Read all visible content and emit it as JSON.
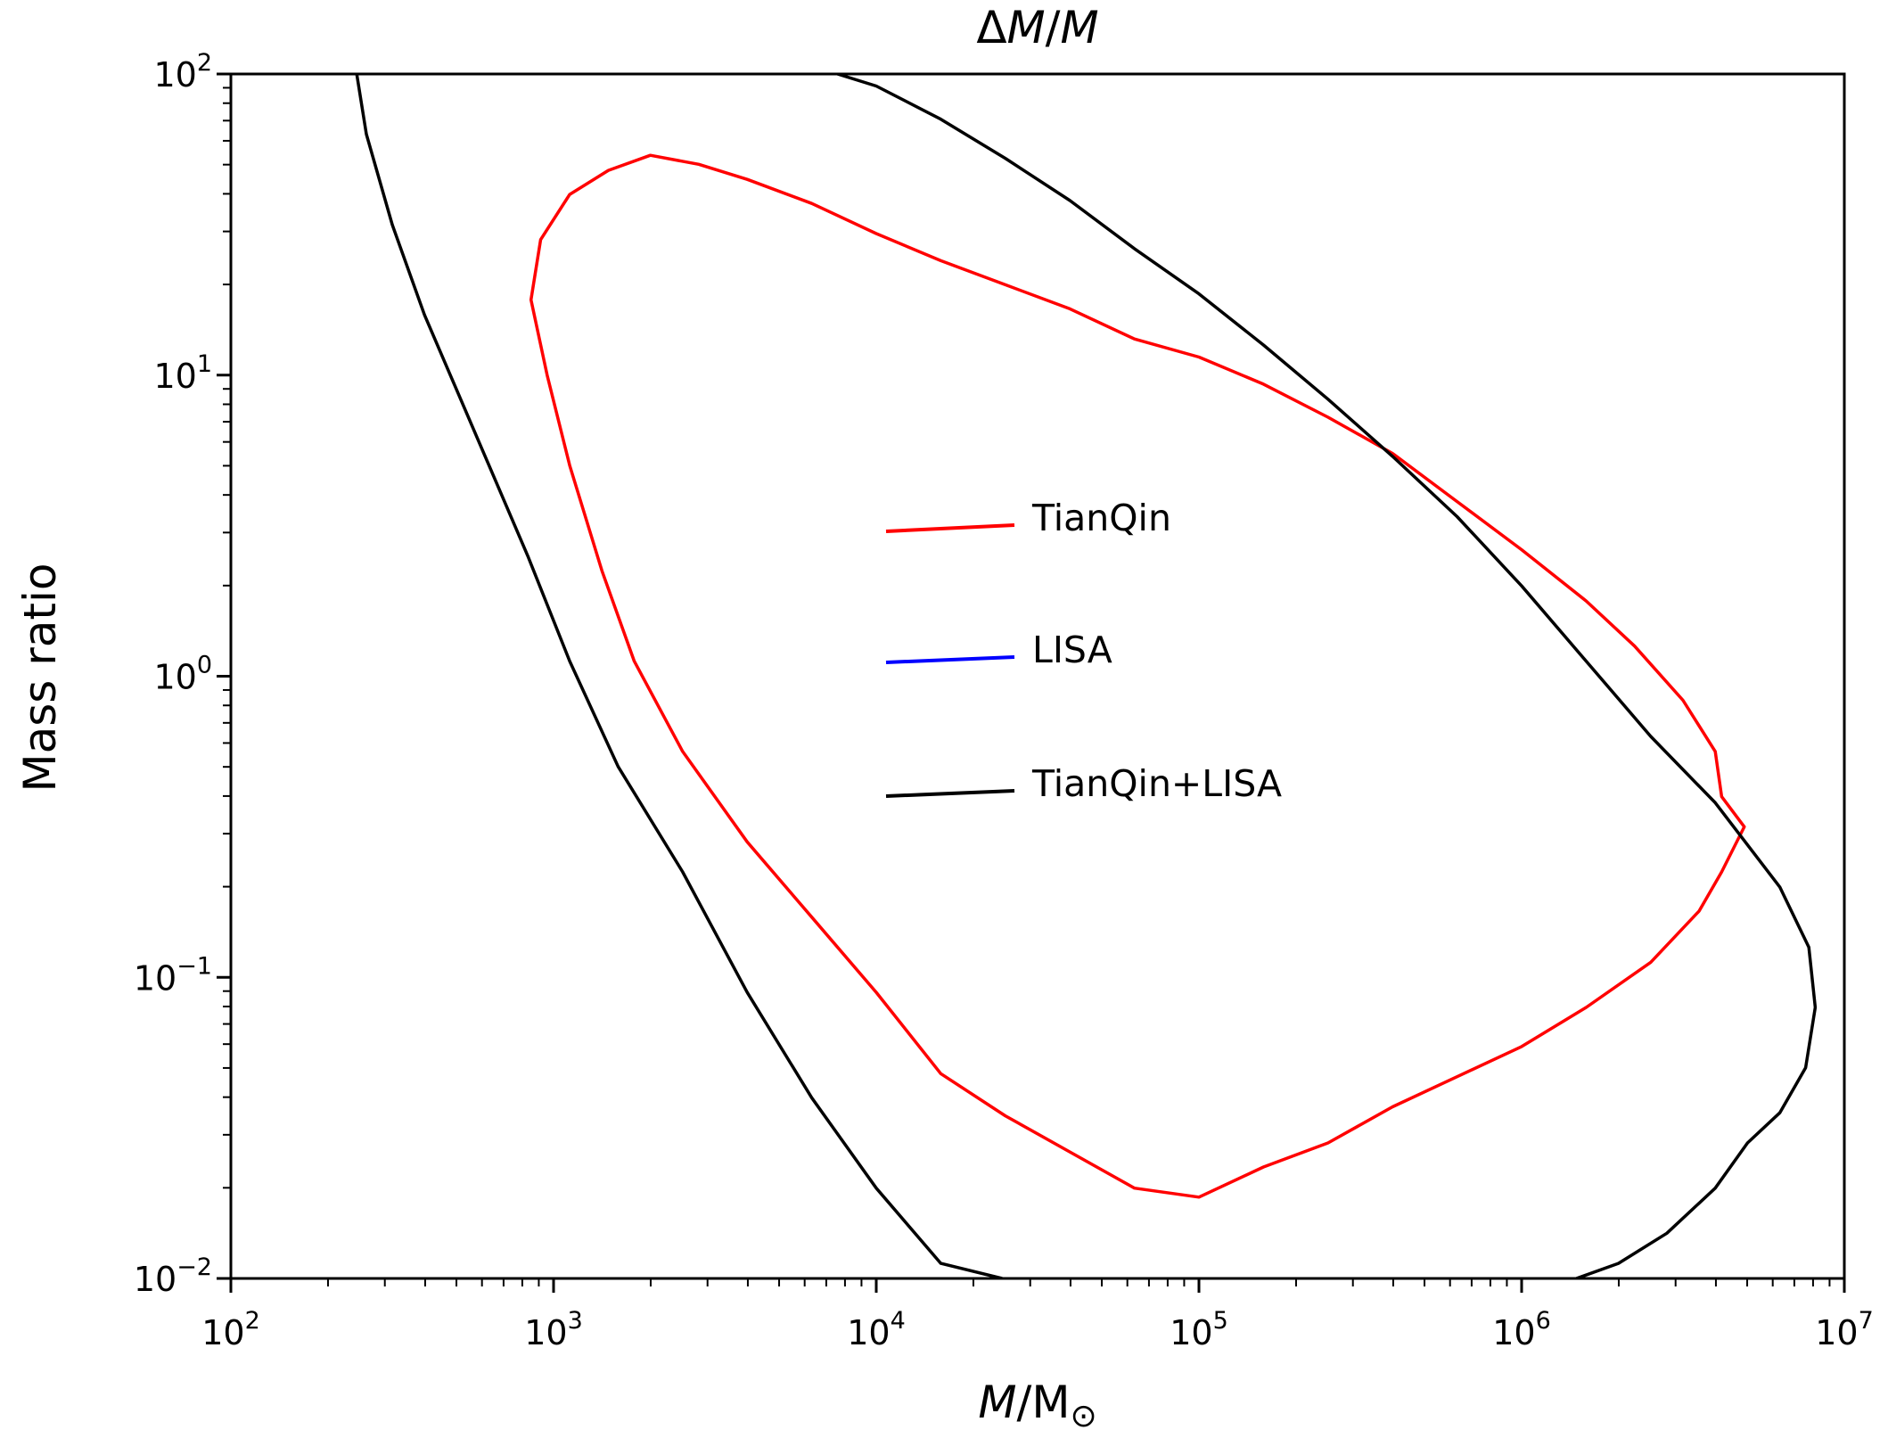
{
  "chart_data": {
    "type": "line",
    "title": {
      "prefix": "Δ",
      "var1": "M",
      "sep": "/",
      "var2": "M"
    },
    "xlabel": {
      "var": "M",
      "sep": "/M",
      "sub": "⊙"
    },
    "ylabel": "Mass ratio",
    "x_scale": "log",
    "y_scale": "log",
    "xlim": [
      100,
      10000000
    ],
    "ylim": [
      0.01,
      100
    ],
    "x_ticks": [
      {
        "base": "10",
        "exp": "2",
        "value": 100
      },
      {
        "base": "10",
        "exp": "3",
        "value": 1000
      },
      {
        "base": "10",
        "exp": "4",
        "value": 10000
      },
      {
        "base": "10",
        "exp": "5",
        "value": 100000
      },
      {
        "base": "10",
        "exp": "6",
        "value": 1000000
      },
      {
        "base": "10",
        "exp": "7",
        "value": 10000000
      }
    ],
    "y_ticks": [
      {
        "base": "10",
        "exp": "2",
        "value": 100
      },
      {
        "base": "10",
        "exp": "1",
        "value": 10
      },
      {
        "base": "10",
        "exp": "0",
        "value": 1
      },
      {
        "base": "10",
        "exp": "−1",
        "value": 0.1
      },
      {
        "base": "10",
        "exp": "−2",
        "value": 0.01
      }
    ],
    "legend_position": "center",
    "series": [
      {
        "name": "TianQin",
        "color": "#ff0000",
        "closed": true,
        "log10_points": [
          [
            2.93,
            1.25
          ],
          [
            2.96,
            1.45
          ],
          [
            3.05,
            1.6
          ],
          [
            3.17,
            1.68
          ],
          [
            3.3,
            1.73
          ],
          [
            3.45,
            1.7
          ],
          [
            3.6,
            1.65
          ],
          [
            3.8,
            1.57
          ],
          [
            4.0,
            1.47
          ],
          [
            4.2,
            1.38
          ],
          [
            4.4,
            1.3
          ],
          [
            4.6,
            1.22
          ],
          [
            4.8,
            1.12
          ],
          [
            5.0,
            1.06
          ],
          [
            5.2,
            0.97
          ],
          [
            5.4,
            0.86
          ],
          [
            5.6,
            0.74
          ],
          [
            5.8,
            0.58
          ],
          [
            6.0,
            0.42
          ],
          [
            6.2,
            0.25
          ],
          [
            6.35,
            0.1
          ],
          [
            6.5,
            -0.08
          ],
          [
            6.6,
            -0.25
          ],
          [
            6.62,
            -0.4
          ],
          [
            6.69,
            -0.5
          ],
          [
            6.62,
            -0.65
          ],
          [
            6.55,
            -0.78
          ],
          [
            6.4,
            -0.95
          ],
          [
            6.2,
            -1.1
          ],
          [
            6.0,
            -1.23
          ],
          [
            5.8,
            -1.33
          ],
          [
            5.6,
            -1.43
          ],
          [
            5.4,
            -1.55
          ],
          [
            5.2,
            -1.63
          ],
          [
            5.0,
            -1.73
          ],
          [
            4.8,
            -1.7
          ],
          [
            4.6,
            -1.58
          ],
          [
            4.4,
            -1.46
          ],
          [
            4.2,
            -1.32
          ],
          [
            4.0,
            -1.05
          ],
          [
            3.8,
            -0.8
          ],
          [
            3.6,
            -0.55
          ],
          [
            3.4,
            -0.25
          ],
          [
            3.25,
            0.05
          ],
          [
            3.15,
            0.35
          ],
          [
            3.05,
            0.7
          ],
          [
            2.98,
            1.0
          ]
        ]
      },
      {
        "name": "LISA",
        "color": "#0000ff",
        "closed": false,
        "log10_points": []
      },
      {
        "name": "TianQin+LISA",
        "color": "#000000",
        "closed": false,
        "log10_points": [
          [
            2.39,
            2.0
          ],
          [
            2.42,
            1.8
          ],
          [
            2.5,
            1.5
          ],
          [
            2.6,
            1.2
          ],
          [
            2.7,
            0.95
          ],
          [
            2.8,
            0.7
          ],
          [
            2.92,
            0.4
          ],
          [
            3.05,
            0.05
          ],
          [
            3.2,
            -0.3
          ],
          [
            3.4,
            -0.65
          ],
          [
            3.6,
            -1.05
          ],
          [
            3.8,
            -1.4
          ],
          [
            4.0,
            -1.7
          ],
          [
            4.2,
            -1.95
          ],
          [
            4.39,
            -2.0
          ]
        ]
      },
      {
        "name": "TianQin+LISA",
        "color": "#000000",
        "closed": false,
        "log10_points": [
          [
            3.88,
            2.0
          ],
          [
            4.0,
            1.96
          ],
          [
            4.2,
            1.85
          ],
          [
            4.4,
            1.72
          ],
          [
            4.6,
            1.58
          ],
          [
            4.8,
            1.42
          ],
          [
            5.0,
            1.27
          ],
          [
            5.2,
            1.1
          ],
          [
            5.4,
            0.92
          ],
          [
            5.6,
            0.73
          ],
          [
            5.8,
            0.53
          ],
          [
            6.0,
            0.3
          ],
          [
            6.2,
            0.05
          ],
          [
            6.4,
            -0.2
          ],
          [
            6.6,
            -0.42
          ],
          [
            6.8,
            -0.7
          ],
          [
            6.89,
            -0.9
          ],
          [
            6.91,
            -1.1
          ],
          [
            6.88,
            -1.3
          ],
          [
            6.8,
            -1.45
          ],
          [
            6.7,
            -1.55
          ],
          [
            6.6,
            -1.7
          ],
          [
            6.45,
            -1.85
          ],
          [
            6.3,
            -1.95
          ],
          [
            6.17,
            -2.0
          ]
        ]
      }
    ]
  }
}
